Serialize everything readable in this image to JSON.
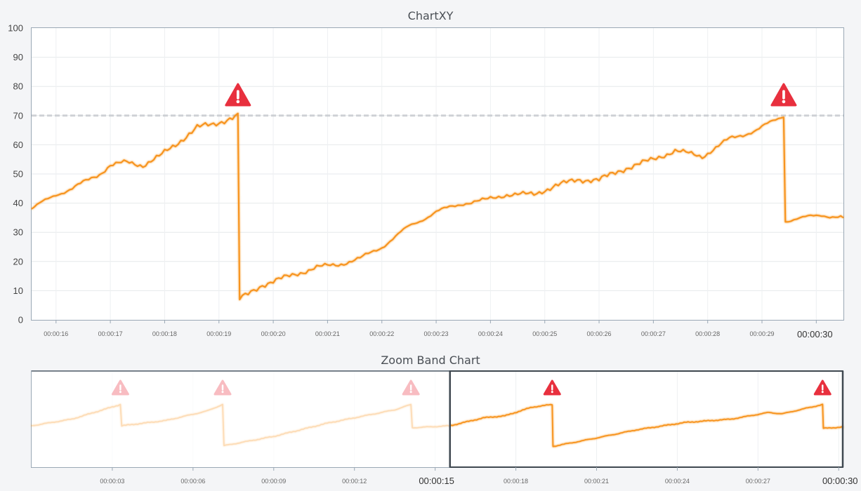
{
  "chart_data": [
    {
      "type": "line",
      "title": "ChartXY",
      "xlabel": "",
      "ylabel": "",
      "xlim": [
        "00:00:15.55",
        "00:00:30.5"
      ],
      "ylim": [
        0,
        100
      ],
      "y_ticks": [
        "0",
        "10",
        "20",
        "30",
        "40",
        "50",
        "60",
        "70",
        "80",
        "90",
        "100"
      ],
      "x_ticks": [
        "00:00:16",
        "00:00:17",
        "00:00:18",
        "00:00:19",
        "00:00:20",
        "00:00:21",
        "00:00:22",
        "00:00:23",
        "00:00:24",
        "00:00:25",
        "00:00:26",
        "00:00:27",
        "00:00:28",
        "00:00:29",
        "00:00:30"
      ],
      "major_x_tick": "00:00:30",
      "grid": true,
      "threshold": {
        "value": 70,
        "style": "dashed",
        "color": "#bfc3c8"
      },
      "alert_markers": [
        {
          "x": "00:00:19.35",
          "y": 70
        },
        {
          "x": "00:00:29.4",
          "y": 70
        }
      ],
      "series": [
        {
          "color": "#f7931e",
          "points": [
            [
              "00:00:15.55",
              38
            ],
            [
              "00:00:16.0",
              43
            ],
            [
              "00:00:16.3",
              45
            ],
            [
              "00:00:16.8",
              50
            ],
            [
              "00:00:17.0",
              53
            ],
            [
              "00:00:17.3",
              54
            ],
            [
              "00:00:17.6",
              53
            ],
            [
              "00:00:17.9",
              56
            ],
            [
              "00:00:18.2",
              60
            ],
            [
              "00:00:18.6",
              66
            ],
            [
              "00:00:18.9",
              67
            ],
            [
              "00:00:19.2",
              69
            ],
            [
              "00:00:19.35",
              70
            ],
            [
              "00:00:19.38",
              7
            ],
            [
              "00:00:19.8",
              12
            ],
            [
              "00:00:20.3",
              15
            ],
            [
              "00:00:20.8",
              18
            ],
            [
              "00:00:21.2",
              19
            ],
            [
              "00:00:21.6",
              21
            ],
            [
              "00:00:22.0",
              25
            ],
            [
              "00:00:22.5",
              32
            ],
            [
              "00:00:23.0",
              37
            ],
            [
              "00:00:23.5",
              40
            ],
            [
              "00:00:23.9",
              41
            ],
            [
              "00:00:24.3",
              43
            ],
            [
              "00:00:24.8",
              43
            ],
            [
              "00:00:25.2",
              46
            ],
            [
              "00:00:25.6",
              48
            ],
            [
              "00:00:26.0",
              48
            ],
            [
              "00:00:26.5",
              52
            ],
            [
              "00:00:27.0",
              55
            ],
            [
              "00:00:27.4",
              58
            ],
            [
              "00:00:27.9",
              56
            ],
            [
              "00:00:28.4",
              62
            ],
            [
              "00:00:28.9",
              65
            ],
            [
              "00:00:29.2",
              68
            ],
            [
              "00:00:29.4",
              70
            ],
            [
              "00:00:29.43",
              34
            ],
            [
              "00:00:29.8",
              35
            ],
            [
              "00:00:30.1",
              36
            ],
            [
              "00:00:30.5",
              35
            ]
          ]
        }
      ]
    },
    {
      "type": "line",
      "title": "Zoom Band Chart",
      "xlabel": "",
      "ylabel": "",
      "xlim": [
        "00:00:00",
        "00:00:30.15"
      ],
      "x_ticks": [
        "00:00:03",
        "00:00:06",
        "00:00:09",
        "00:00:12",
        "00:00:15",
        "00:00:18",
        "00:00:21",
        "00:00:24",
        "00:00:27",
        "00:00:30"
      ],
      "major_x_ticks": [
        "00:00:15",
        "00:00:30"
      ],
      "selected_range": [
        "00:00:15.55",
        "00:00:30.5"
      ],
      "alert_markers": [
        {
          "x": "00:00:03.3",
          "y": 70
        },
        {
          "x": "00:00:07.1",
          "y": 70
        },
        {
          "x": "00:00:14.1",
          "y": 70
        },
        {
          "x": "00:00:19.35",
          "y": 70
        },
        {
          "x": "00:00:29.4",
          "y": 70
        }
      ],
      "series": [
        {
          "color": "#f7931e",
          "points": [
            [
              "00:00:00.0",
              38
            ],
            [
              "00:00:01.5",
              48
            ],
            [
              "00:00:03.3",
              70
            ],
            [
              "00:00:03.35",
              38
            ],
            [
              "00:00:05.0",
              46
            ],
            [
              "00:00:06.5",
              60
            ],
            [
              "00:00:07.1",
              70
            ],
            [
              "00:00:07.15",
              8
            ],
            [
              "00:00:09.0",
              22
            ],
            [
              "00:00:11.0",
              42
            ],
            [
              "00:00:13.5",
              62
            ],
            [
              "00:00:14.1",
              70
            ],
            [
              "00:00:14.15",
              35
            ],
            [
              "00:00:15.55",
              38
            ],
            [
              "00:00:16.8",
              50
            ],
            [
              "00:00:17.6",
              53
            ],
            [
              "00:00:18.6",
              66
            ],
            [
              "00:00:19.35",
              70
            ],
            [
              "00:00:19.38",
              7
            ],
            [
              "00:00:20.8",
              18
            ],
            [
              "00:00:22.5",
              32
            ],
            [
              "00:00:24.3",
              43
            ],
            [
              "00:00:26.0",
              48
            ],
            [
              "00:00:27.4",
              58
            ],
            [
              "00:00:27.9",
              56
            ],
            [
              "00:00:29.4",
              70
            ],
            [
              "00:00:29.43",
              34
            ],
            [
              "00:00:30.1",
              36
            ],
            [
              "00:00:30.5",
              35
            ]
          ]
        }
      ]
    }
  ]
}
